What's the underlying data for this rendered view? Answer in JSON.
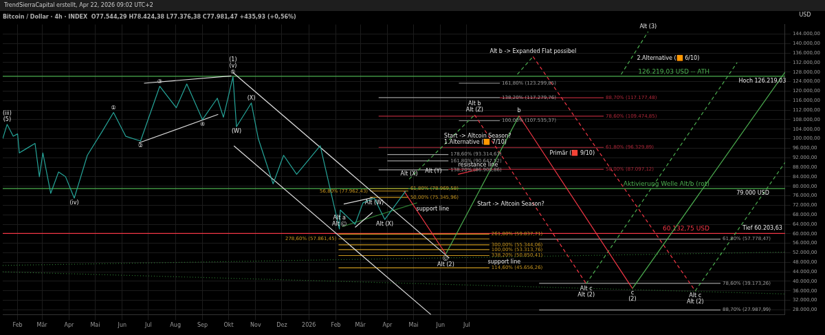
{
  "chart_data": {
    "type": "line",
    "title": "Bitcoin / Dollar · 4h · INDEX  O77.544,29 H78.424,38 L77.376,38 C77.981,47 +435,93 (+0,56%)",
    "ylabel": "USD",
    "xlim": [
      "2025-01-15",
      "2027-07-01"
    ],
    "xticks": [
      {
        "value": "2025-02-01",
        "label": "Feb"
      },
      {
        "value": "2025-03-01",
        "label": "Mär"
      },
      {
        "value": "2025-04-01",
        "label": "Apr"
      },
      {
        "value": "2025-05-01",
        "label": "Mai"
      },
      {
        "value": "2025-06-01",
        "label": "Jun"
      },
      {
        "value": "2025-07-01",
        "label": "Jul"
      },
      {
        "value": "2025-08-01",
        "label": "Aug"
      },
      {
        "value": "2025-09-01",
        "label": "Sep"
      },
      {
        "value": "2025-10-01",
        "label": "Okt"
      },
      {
        "value": "2025-11-01",
        "label": "Nov"
      },
      {
        "value": "2025-12-01",
        "label": "Dez"
      },
      {
        "value": "2026-01-01",
        "label": "2026"
      },
      {
        "value": "2026-02-01",
        "label": "Feb"
      },
      {
        "value": "2026-03-01",
        "label": "Mär"
      },
      {
        "value": "2026-04-01",
        "label": "Apr"
      },
      {
        "value": "2026-05-01",
        "label": "Mai"
      },
      {
        "value": "2026-06-01",
        "label": "Jun"
      },
      {
        "value": "2026-07-01",
        "label": "Jul"
      }
    ],
    "ylim": [
      26000,
      148000
    ],
    "yticks": [
      {
        "value": 28000,
        "label": "28.000,00"
      },
      {
        "value": 32000,
        "label": "32.000,00"
      },
      {
        "value": 36000,
        "label": "36.000,00"
      },
      {
        "value": 40000,
        "label": "40.000,00"
      },
      {
        "value": 44000,
        "label": "44.000,00"
      },
      {
        "value": 48000,
        "label": "48.000,00"
      },
      {
        "value": 52000,
        "label": "52.000,00"
      },
      {
        "value": 56000,
        "label": "56.000,00"
      },
      {
        "value": 60000,
        "label": "60.000,00"
      },
      {
        "value": 64000,
        "label": "64.000,00"
      },
      {
        "value": 68000,
        "label": "68.000,00"
      },
      {
        "value": 72000,
        "label": "72.000,00"
      },
      {
        "value": 76000,
        "label": "76.000,00"
      },
      {
        "value": 80000,
        "label": "80.000,00"
      },
      {
        "value": 84000,
        "label": "84.000,00"
      },
      {
        "value": 88000,
        "label": "88.000,00"
      },
      {
        "value": 92000,
        "label": "92.000,00"
      },
      {
        "value": 96000,
        "label": "96.000,00"
      },
      {
        "value": 100000,
        "label": "100.000,00"
      },
      {
        "value": 104000,
        "label": "104.000,00"
      },
      {
        "value": 108000,
        "label": "108.000,00"
      },
      {
        "value": 112000,
        "label": "112.000,00"
      },
      {
        "value": 116000,
        "label": "116.000,00"
      },
      {
        "value": 120000,
        "label": "120.000,00"
      },
      {
        "value": 124000,
        "label": "124.000,00"
      },
      {
        "value": 128000,
        "label": "128.000,00"
      },
      {
        "value": 132000,
        "label": "132.000,00"
      },
      {
        "value": 136000,
        "label": "136.000,00"
      },
      {
        "value": 140000,
        "label": "140.000,00"
      },
      {
        "value": 144000,
        "label": "144.000,00"
      }
    ],
    "grid": true,
    "legend": false,
    "marker": "none",
    "series": [
      {
        "color": "#26a69a",
        "x": [
          "2025-01-15",
          "2025-01-20",
          "2025-01-27",
          "2025-02-01",
          "2025-02-03",
          "2025-02-12",
          "2025-02-21",
          "2025-02-26",
          "2025-03-02",
          "2025-03-11",
          "2025-03-20",
          "2025-03-28",
          "2025-04-07",
          "2025-04-22",
          "2025-05-09",
          "2025-05-22",
          "2025-06-05",
          "2025-06-22",
          "2025-07-14",
          "2025-08-02",
          "2025-08-14",
          "2025-09-01",
          "2025-09-18",
          "2025-09-25",
          "2025-10-06",
          "2025-10-10",
          "2025-10-27",
          "2025-11-04",
          "2025-11-21",
          "2025-12-03",
          "2025-12-18",
          "2026-01-14",
          "2026-02-05",
          "2026-02-06",
          "2026-02-23",
          "2026-03-04",
          "2026-03-17",
          "2026-03-29",
          "2026-04-22"
        ],
        "values": [
          100000,
          106000,
          101000,
          102000,
          94000,
          96000,
          98000,
          84000,
          94000,
          77000,
          86000,
          84000,
          75000,
          93000,
          103000,
          111000,
          101000,
          99000,
          122000,
          113000,
          123000,
          108000,
          117000,
          109000,
          126000,
          105000,
          115000,
          100000,
          81000,
          93000,
          85000,
          97000,
          62000,
          70000,
          64000,
          73000,
          75000,
          66000,
          78000
        ]
      },
      {
        "color": "#f23645",
        "x": [
          "2026-04-20",
          "2026-06-07"
        ],
        "values": [
          78000,
          51500
        ]
      },
      {
        "color": "#4caf50",
        "x": [
          "2026-06-07",
          "2026-08-30"
        ],
        "values": [
          51500,
          109600
        ]
      },
      {
        "color": "#f23645",
        "x": [
          "2026-08-30",
          "2027-01-07"
        ],
        "values": [
          109600,
          37000
        ]
      },
      {
        "color": "#4caf50",
        "x": [
          "2027-01-07",
          "2027-07-01"
        ],
        "values": [
          37000,
          128000
        ]
      },
      {
        "color": "#4caf50",
        "line_style": "dashed",
        "x": [
          "2026-04-26",
          "2026-07-10"
        ],
        "values": [
          83000,
          110000
        ]
      },
      {
        "color": "#f23645",
        "line_style": "dashed",
        "x": [
          "2026-07-10",
          "2026-11-15"
        ],
        "values": [
          110000,
          39000
        ]
      },
      {
        "color": "#4caf50",
        "line_style": "dashed",
        "x": [
          "2026-11-15",
          "2027-05-07"
        ],
        "values": [
          39000,
          132000
        ]
      },
      {
        "color": "#4caf50",
        "line_style": "dashed",
        "x": [
          "2026-08-28",
          "2026-09-15"
        ],
        "values": [
          127000,
          134500
        ]
      },
      {
        "color": "#f23645",
        "line_style": "dashed",
        "x": [
          "2026-09-15",
          "2027-03-20"
        ],
        "values": [
          134500,
          36000
        ]
      },
      {
        "color": "#4caf50",
        "line_style": "dashed",
        "x": [
          "2027-03-20",
          "2027-07-01"
        ],
        "values": [
          36000,
          90000
        ]
      },
      {
        "color": "#4caf50",
        "line_style": "dashed",
        "x": [
          "2026-12-25",
          "2027-01-25"
        ],
        "values": [
          127000,
          145000
        ]
      },
      {
        "color": "#e0e0e0",
        "x": [
          "2025-10-06",
          "2026-06-11"
        ],
        "values": [
          127800,
          49800
        ]
      },
      {
        "color": "#e0e0e0",
        "x": [
          "2025-10-07",
          "2026-05-21"
        ],
        "values": [
          97000,
          26000
        ]
      },
      {
        "color": "#e0e0e0",
        "x": [
          "2025-06-26",
          "2025-10-04"
        ],
        "values": [
          123300,
          126400
        ]
      },
      {
        "color": "#e0e0e0",
        "x": [
          "2025-06-20",
          "2025-09-19"
        ],
        "values": [
          98200,
          110200
        ]
      },
      {
        "color": "#e0e0e0",
        "x": [
          "2026-02-10",
          "2026-03-15"
        ],
        "values": [
          72500,
          75200
        ]
      },
      {
        "color": "#e0e0e0",
        "x": [
          "2026-02-23",
          "2026-03-15"
        ],
        "values": [
          62700,
          69000
        ]
      },
      {
        "color": "#2e7d32",
        "line_style": "dotted",
        "x": [
          "2025-01-15",
          "2027-07-01"
        ],
        "values": [
          46700,
          52300
        ]
      },
      {
        "color": "#2e7d32",
        "line_style": "dotted",
        "x": [
          "2025-01-15",
          "2027-07-01"
        ],
        "values": [
          44000,
          34700
        ]
      },
      {
        "color": "#2e7d32",
        "x": [
          "2026-02-08",
          "2026-05-05"
        ],
        "values": [
          63000,
          73000
        ]
      },
      {
        "color": "#f23645",
        "x": [
          "2026-06-21",
          "2026-07-14"
        ],
        "values": [
          85000,
          87000
        ]
      },
      {
        "name": "261,80% (59.837,71)",
        "color": "#c8961e",
        "x": [
          "2026-02-04",
          "2026-07-27"
        ],
        "values": [
          59837.71,
          59837.71
        ]
      },
      {
        "name": "278,60% (57.861,45)",
        "color": "#c8961e",
        "x": [
          "2026-02-04",
          "2026-07-27"
        ],
        "values": [
          57861.45,
          57861.45
        ]
      },
      {
        "name": "300,00% (55.344,06)",
        "color": "#c8961e",
        "x": [
          "2026-02-04",
          "2026-07-27"
        ],
        "values": [
          55344.06,
          55344.06
        ]
      },
      {
        "name": "100,00% (53.313,76)",
        "color": "#c8961e",
        "x": [
          "2026-02-04",
          "2026-07-27"
        ],
        "values": [
          53313.76,
          53313.76
        ]
      },
      {
        "name": "338,20% (50.850,41)",
        "color": "#c8961e",
        "x": [
          "2026-02-04",
          "2026-07-27"
        ],
        "values": [
          50850.41,
          50850.41
        ]
      },
      {
        "name": "114,60% (45.656,26)",
        "color": "#c8961e",
        "x": [
          "2026-02-04",
          "2026-07-27"
        ],
        "values": [
          45656.26,
          45656.26
        ]
      },
      {
        "name": "61,80% (78.969,58)",
        "color": "#c8961e",
        "x": [
          "2026-03-12",
          "2026-04-25"
        ],
        "values": [
          78969.58,
          78969.58
        ]
      },
      {
        "name": "56,80% (77.962,43)",
        "color": "#c8961e",
        "x": [
          "2026-03-12",
          "2026-04-25"
        ],
        "values": [
          77962.43,
          77962.43
        ]
      },
      {
        "name": "50,00% (75.345,96)",
        "color": "#c8961e",
        "x": [
          "2026-03-12",
          "2026-04-25"
        ],
        "values": [
          75345.96,
          75345.96
        ]
      },
      {
        "name": "161,80% (123.299,85)",
        "color": "#9e9e9e",
        "x": [
          "2026-06-22",
          "2026-08-08"
        ],
        "values": [
          123299.85,
          123299.85
        ]
      },
      {
        "name": "138,20% (117.279,76)",
        "color": "#9e9e9e",
        "x": [
          "2026-03-22",
          "2026-08-08"
        ],
        "values": [
          117279.76,
          117279.76
        ]
      },
      {
        "name": "88,70% (117.177,48)",
        "color": "#b2283a",
        "x": [
          "2026-08-08",
          "2026-12-05"
        ],
        "values": [
          117177.48,
          117177.48
        ]
      },
      {
        "name": "78,60% (109.474,85)",
        "color": "#b2283a",
        "x": [
          "2026-03-22",
          "2026-12-05"
        ],
        "values": [
          109474.85,
          109474.85
        ]
      },
      {
        "name": "100,00% (107.535,37)",
        "color": "#9e9e9e",
        "x": [
          "2026-06-22",
          "2026-08-08"
        ],
        "values": [
          107535.37,
          107535.37
        ]
      },
      {
        "name": "61,80% (96.329,89)",
        "color": "#b2283a",
        "x": [
          "2026-03-22",
          "2026-12-05"
        ],
        "values": [
          96329.89,
          96329.89
        ]
      },
      {
        "name": "178,60% (93.314,63)",
        "color": "#9e9e9e",
        "x": [
          "2026-04-01",
          "2026-06-10"
        ],
        "values": [
          93314.63,
          93314.63
        ]
      },
      {
        "name": "161,80% (90.647,52)",
        "color": "#9e9e9e",
        "x": [
          "2026-04-01",
          "2026-06-10"
        ],
        "values": [
          90647.52,
          90647.52
        ]
      },
      {
        "name": "50,00% (87.097,12)",
        "color": "#b2283a",
        "x": [
          "2026-06-10",
          "2026-12-05"
        ],
        "values": [
          87097.12,
          87097.12
        ]
      },
      {
        "name": "138,20% (86.900,86)",
        "color": "#9e9e9e",
        "x": [
          "2026-03-22",
          "2026-06-10"
        ],
        "values": [
          86900.86,
          86900.86
        ]
      },
      {
        "name": "61,80% (57.778,47)",
        "color": "#9e9e9e",
        "x": [
          "2026-09-22",
          "2027-04-18"
        ],
        "values": [
          57778.47,
          57778.47
        ]
      },
      {
        "name": "78,60% (39.173,26)",
        "color": "#9e9e9e",
        "x": [
          "2026-09-22",
          "2027-04-18"
        ],
        "values": [
          39173.26,
          39173.26
        ]
      },
      {
        "name": "88,70% (27.987,99)",
        "color": "#9e9e9e",
        "x": [
          "2026-09-22",
          "2027-04-18"
        ],
        "values": [
          27987.99,
          27987.99
        ]
      }
    ],
    "ref_lines": [
      {
        "axis": "y",
        "value": 126219.03,
        "label": "126.219,03 USD -- ATH",
        "color": "#4caf50"
      },
      {
        "axis": "y",
        "value": 79000,
        "label": "Aktivierung Welle Alt/b (rot)",
        "color": "#4caf50"
      },
      {
        "axis": "y",
        "value": 60132.75,
        "label": "60.132,75 USD",
        "color": "#f23645"
      }
    ],
    "annotations": [
      "TrendSierraCapital erstellt, Apr 22, 2026 09:02 UTC+2",
      {
        "text": "Hoch 126.219,03",
        "x": "2027-06-05",
        "y": 126219.03
      },
      {
        "text": "Tief 60.203,63",
        "x": "2027-06-05",
        "y": 60132.75
      },
      {
        "text": "79.000 USD",
        "x": "2027-05-25",
        "y": 79000
      },
      {
        "text": "(5)",
        "x": "2025-01-20",
        "y": 106000
      },
      {
        "text": "(iii)",
        "x": "2025-01-20",
        "y": 106000
      },
      {
        "text": "(iv)",
        "x": "2025-04-07",
        "y": 75000
      },
      {
        "text": "①",
        "x": "2025-05-22",
        "y": 111000
      },
      {
        "text": "②",
        "x": "2025-06-22",
        "y": 99000
      },
      {
        "text": "③",
        "x": "2025-07-14",
        "y": 122000
      },
      {
        "text": "④",
        "x": "2025-09-01",
        "y": 108000
      },
      {
        "text": "⑤",
        "x": "2025-10-06",
        "y": 126000
      },
      {
        "text": "(v)",
        "x": "2025-10-06",
        "y": 126000
      },
      {
        "text": "(1)",
        "x": "2025-10-06",
        "y": 126000
      },
      {
        "text": "(W)",
        "x": "2025-10-10",
        "y": 105000
      },
      {
        "text": "(X)",
        "x": "2025-10-27",
        "y": 115000
      },
      {
        "text": "Alt Ⓒ",
        "x": "2026-02-05",
        "y": 62000
      },
      {
        "text": "Alt a",
        "x": "2026-02-05",
        "y": 62000
      },
      {
        "text": "Alt (W)",
        "x": "2026-03-17",
        "y": 75000
      },
      {
        "text": "Alt (X)",
        "x": "2026-03-29",
        "y": 66000
      },
      {
        "text": "Alt (Y)",
        "x": "2026-05-11",
        "y": 88400
      },
      {
        "text": "Alt (X)",
        "x": "2026-04-26",
        "y": 83000
      },
      {
        "text": "Alt (Z)",
        "x": "2026-07-10",
        "y": 110000
      },
      {
        "text": "Alt b",
        "x": "2026-07-10",
        "y": 110000
      },
      {
        "text": "b",
        "x": "2026-08-30",
        "y": 109600
      },
      {
        "text": "Ⓒ",
        "x": "2026-06-07",
        "y": 51500
      },
      {
        "text": "Alt (2)",
        "x": "2026-06-07",
        "y": 51500
      },
      {
        "text": "c",
        "x": "2027-01-07",
        "y": 37000
      },
      {
        "text": "(2)",
        "x": "2027-01-07",
        "y": 37000
      },
      {
        "text": "Alt c",
        "x": "2026-11-15",
        "y": 39000
      },
      {
        "text": "Alt (2)",
        "x": "2026-11-15",
        "y": 39000
      },
      {
        "text": "Alt c",
        "x": "2027-03-20",
        "y": 36000
      },
      {
        "text": "Alt (2)",
        "x": "2027-03-20",
        "y": 36000
      },
      {
        "text": "Alt (3)",
        "x": "2027-01-25",
        "y": 145000
      },
      {
        "text": "Alt b -> Expanded Flat possibel",
        "x": "2026-09-15",
        "y": 134500
      },
      {
        "text": "1.Alternative (🟧 7/10)",
        "x": "2026-06-02",
        "y": 96320
      },
      {
        "text": "Start -> Altcoin Season?",
        "x": "2026-06-02",
        "y": 96320
      },
      {
        "text": "Start -> Altcoin Season?",
        "x": "2026-07-10",
        "y": 74325
      },
      {
        "text": "2.Alternative (🟧 6/10)",
        "x": "2027-01-09",
        "y": 135710
      },
      {
        "text": "Primär (🟥 9/10)",
        "x": "2026-10-01",
        "y": 91729
      },
      {
        "text": "support line",
        "x": "2026-05-01",
        "y": 72535
      },
      {
        "text": "support line",
        "x": "2026-07-22",
        "y": 50152
      },
      {
        "text": "resistance line",
        "x": "2026-07-14",
        "y": 87000
      }
    ]
  }
}
